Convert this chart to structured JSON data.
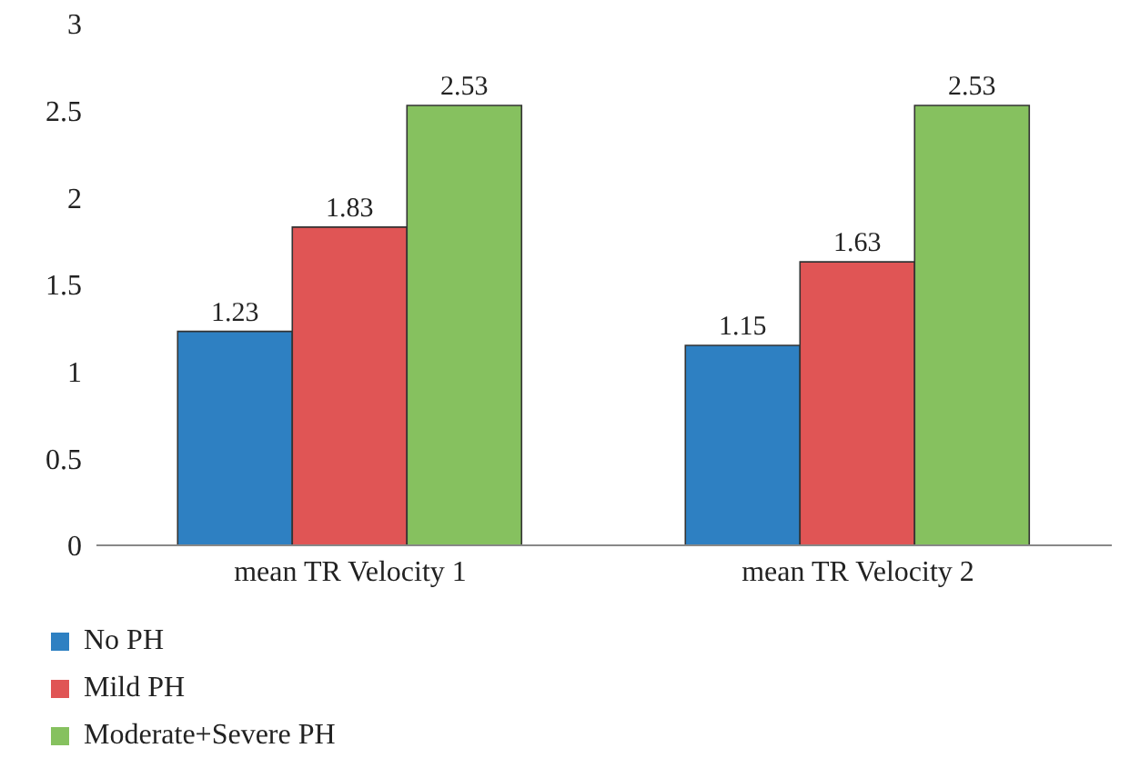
{
  "chart_data": {
    "type": "bar",
    "categories": [
      "mean TR Velocity 1",
      "mean TR Velocity 2"
    ],
    "series": [
      {
        "name": "No PH",
        "color": "#2e80c2",
        "values": [
          1.23,
          1.15
        ]
      },
      {
        "name": "Mild PH",
        "color": "#e05555",
        "values": [
          1.83,
          1.63
        ]
      },
      {
        "name": "Moderate+Severe PH",
        "color": "#86c15f",
        "values": [
          2.53,
          2.53
        ]
      }
    ],
    "ylim": [
      0,
      3
    ],
    "yticks": [
      0,
      0.5,
      1,
      1.5,
      2,
      2.5,
      3
    ],
    "grid": false,
    "legend": "bottom",
    "data_labels": true
  }
}
